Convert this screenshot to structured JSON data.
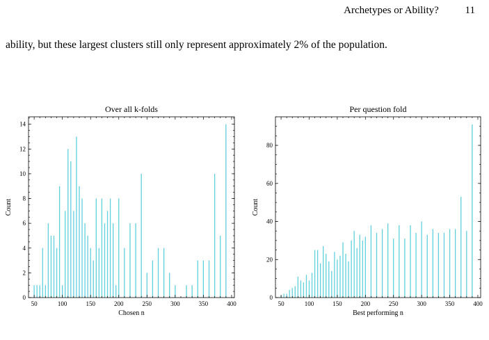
{
  "header": {
    "title": "Archetypes or Ability?",
    "page_number": "11"
  },
  "body_text": "ability, but these largest clusters still only represent approximately 2% of the population.",
  "colors": {
    "bar": "#5fd0dc"
  },
  "chart_data": [
    {
      "type": "bar",
      "title": "Over all k-folds",
      "xlabel": "Chosen n",
      "ylabel": "Count",
      "xlim": [
        40,
        405
      ],
      "ylim": [
        0,
        14.6
      ],
      "xticks": [
        50,
        100,
        150,
        200,
        250,
        300,
        350,
        400
      ],
      "yticks": [
        0,
        2,
        4,
        6,
        8,
        10,
        12,
        14
      ],
      "x": [
        50,
        55,
        60,
        65,
        70,
        75,
        80,
        85,
        90,
        95,
        100,
        105,
        110,
        115,
        120,
        125,
        130,
        135,
        140,
        145,
        150,
        155,
        160,
        165,
        170,
        175,
        180,
        185,
        190,
        195,
        200,
        210,
        220,
        230,
        240,
        250,
        260,
        270,
        280,
        290,
        300,
        320,
        330,
        340,
        350,
        360,
        370,
        380,
        390
      ],
      "values": [
        1,
        1,
        1,
        4,
        1,
        6,
        5,
        5,
        4,
        9,
        1,
        7,
        12,
        11,
        7,
        13,
        9,
        8,
        6,
        5,
        4,
        3,
        8,
        4,
        8,
        6,
        7,
        8,
        6,
        1,
        8,
        4,
        6,
        6,
        10,
        2,
        3,
        4,
        4,
        2,
        1,
        1,
        1,
        3,
        3,
        3,
        10,
        5,
        14
      ]
    },
    {
      "type": "bar",
      "title": "Per question fold",
      "xlabel": "Best performing n",
      "ylabel": "Count",
      "xlim": [
        40,
        405
      ],
      "ylim": [
        0,
        95
      ],
      "xticks": [
        50,
        100,
        150,
        200,
        250,
        300,
        350,
        400
      ],
      "yticks": [
        0,
        20,
        40,
        60,
        80
      ],
      "x": [
        50,
        55,
        60,
        65,
        70,
        75,
        80,
        85,
        90,
        95,
        100,
        105,
        110,
        115,
        120,
        125,
        130,
        135,
        140,
        145,
        150,
        155,
        160,
        165,
        170,
        175,
        180,
        185,
        190,
        195,
        200,
        210,
        220,
        230,
        240,
        250,
        260,
        270,
        280,
        290,
        300,
        310,
        320,
        330,
        340,
        350,
        360,
        370,
        380,
        390
      ],
      "values": [
        1,
        2,
        2,
        4,
        5,
        6,
        11,
        9,
        8,
        12,
        9,
        13,
        25,
        25,
        18,
        27,
        23,
        19,
        14,
        24,
        20,
        22,
        29,
        23,
        19,
        30,
        35,
        26,
        33,
        30,
        32,
        38,
        34,
        36,
        39,
        31,
        38,
        31,
        38,
        34,
        40,
        33,
        36,
        34,
        34,
        36,
        36,
        53,
        35,
        91
      ]
    }
  ]
}
